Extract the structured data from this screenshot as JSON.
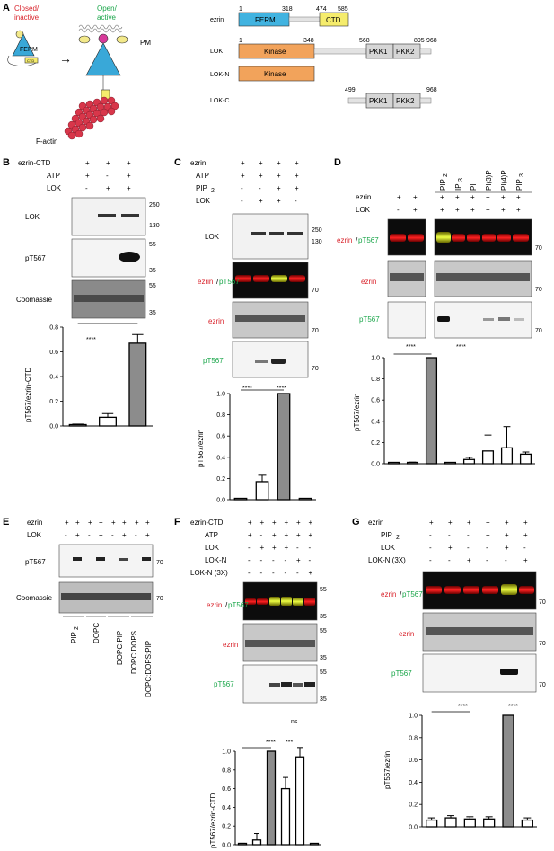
{
  "panelA": {
    "label": "A",
    "closed": "Closed/",
    "inactive": "inactive",
    "open": "Open/",
    "active": "active",
    "pm": "PM",
    "factin": "F-actin",
    "ferm_small": "FERM",
    "ctd_small": "CTD",
    "ezrin": {
      "name": "ezrin",
      "n1": "1",
      "n318": "318",
      "n474": "474",
      "n585": "585",
      "ferm": "FERM",
      "ctd": "CTD"
    },
    "lok": {
      "name": "LOK",
      "n1": "1",
      "n348": "348",
      "n568": "568",
      "n895": "895",
      "n968": "968",
      "kinase": "Kinase",
      "pkk1": "PKK1",
      "pkk2": "PKK2"
    },
    "lokn": {
      "name": "LOK-N",
      "kinase": "Kinase"
    },
    "lokc": {
      "name": "LOK-C",
      "n499": "499",
      "n968": "968",
      "pkk1": "PKK1",
      "pkk2": "PKK2"
    },
    "colors": {
      "ferm": "#41b3e0",
      "ctd": "#f5ec6c",
      "kinase": "#f2a35b",
      "pkk": "#d6d6d6",
      "linker": "#e3e3e3",
      "closed": "#d9242c",
      "open": "#1aa64a"
    }
  },
  "panelB": {
    "label": "B",
    "rows": [
      "ezrin-CTD",
      "ATP",
      "LOK"
    ],
    "signs": [
      [
        "+",
        "+",
        "+"
      ],
      [
        "+",
        "-",
        "+"
      ],
      [
        "-",
        "+",
        "+"
      ]
    ],
    "blots": [
      "LOK",
      "pT567",
      "Coomassie"
    ],
    "mw": [
      "250",
      "130",
      "55",
      "35",
      "55",
      "35"
    ],
    "sig": "****",
    "ylabel": "pT567/ezrin-CTD",
    "yticks": [
      "0.0",
      "0.2",
      "0.4",
      "0.6",
      "0.8"
    ]
  },
  "panelC": {
    "label": "C",
    "rows": [
      "ezrin",
      "ATP",
      "PIP",
      "LOK"
    ],
    "sub2": "2",
    "signs": [
      [
        "+",
        "+",
        "+",
        "+"
      ],
      [
        "+",
        "+",
        "+",
        "+"
      ],
      [
        "-",
        "-",
        "+",
        "+"
      ],
      [
        "-",
        "+",
        "+",
        "-"
      ]
    ],
    "blots": [
      "LOK",
      "ezrin",
      "/",
      "pT567",
      "ezrin",
      "pT567"
    ],
    "mw": [
      "250",
      "130",
      "70",
      "70",
      "70"
    ],
    "sig": [
      "****",
      "****"
    ],
    "ylabel": "pT567/ezrin",
    "yticks": [
      "0.0",
      "0.2",
      "0.4",
      "0.6",
      "0.8",
      "1.0"
    ]
  },
  "panelD": {
    "label": "D",
    "rows": [
      "ezrin",
      "LOK"
    ],
    "signs": [
      [
        "+",
        "+",
        "+",
        "+",
        "+",
        "+",
        "+",
        "+"
      ],
      [
        "-",
        "+",
        "+",
        "+",
        "+",
        "+",
        "+",
        "+"
      ]
    ],
    "cols": [
      "PIP",
      "IP",
      "PI",
      "PI(3)P",
      "PI(4)P",
      "PIP"
    ],
    "colsubs": [
      "2",
      "3",
      "",
      "",
      "",
      "3"
    ],
    "blots": [
      "ezrin",
      "/",
      "pT567",
      "ezrin",
      "pT567"
    ],
    "mw": [
      "70",
      "70",
      "70"
    ],
    "sig": [
      "****",
      "****"
    ],
    "ylabel": "pT567/ezrin",
    "yticks": [
      "0.0",
      "0.2",
      "0.4",
      "0.6",
      "0.8",
      "1.0"
    ]
  },
  "panelE": {
    "label": "E",
    "rows": [
      "ezrin",
      "LOK"
    ],
    "signs": [
      [
        "+",
        "+",
        "+",
        "+",
        "+",
        "+",
        "+",
        "+"
      ],
      [
        "-",
        "+",
        "-",
        "+",
        "-",
        "+",
        "-",
        "+"
      ]
    ],
    "blots": [
      "pT567",
      "Coomassie"
    ],
    "mw": [
      "70",
      "70"
    ],
    "cols": [
      "PIP",
      "DOPC",
      "DOPC:PIP",
      "DOPC:DOPS",
      "DOPC:DOPS:PIP"
    ],
    "colsubs": [
      "2",
      "",
      "2",
      "",
      "2"
    ]
  },
  "panelF": {
    "label": "F",
    "rows": [
      "ezrin-CTD",
      "ATP",
      "LOK",
      "LOK-N",
      "LOK-N (3X)"
    ],
    "signs": [
      [
        "+",
        "+",
        "+",
        "+",
        "+",
        "+"
      ],
      [
        "+",
        "-",
        "+",
        "+",
        "+",
        "+"
      ],
      [
        "-",
        "+",
        "+",
        "+",
        "-",
        "-"
      ],
      [
        "-",
        "-",
        "-",
        "-",
        "+",
        "-"
      ],
      [
        "-",
        "-",
        "-",
        "-",
        "-",
        "+"
      ]
    ],
    "blots": [
      "ezrin",
      "/",
      "pT567",
      "ezrin",
      "pT567"
    ],
    "mw": [
      "55",
      "35",
      "55",
      "35",
      "55",
      "35"
    ],
    "sig": [
      "****",
      "***",
      "ns"
    ],
    "ylabel": "pT567/ezrin-CTD",
    "yticks": [
      "0.0",
      "0.2",
      "0.4",
      "0.6",
      "0.8",
      "1.0"
    ]
  },
  "panelG": {
    "label": "G",
    "rows": [
      "ezrin",
      "PIP",
      "LOK",
      "LOK-N (3X)"
    ],
    "sub2": "2",
    "signs": [
      [
        "+",
        "+",
        "+",
        "+",
        "+",
        "+"
      ],
      [
        "-",
        "-",
        "-",
        "+",
        "+",
        "+"
      ],
      [
        "-",
        "+",
        "-",
        "-",
        "+",
        "-"
      ],
      [
        "-",
        "-",
        "+",
        "-",
        "-",
        "+"
      ]
    ],
    "blots": [
      "ezrin",
      "/",
      "pT567",
      "ezrin",
      "pT567"
    ],
    "mw": [
      "70",
      "70",
      "70"
    ],
    "sig": [
      "****",
      "****"
    ],
    "ylabel": "pT567/ezrin",
    "yticks": [
      "0.0",
      "0.2",
      "0.4",
      "0.6",
      "0.8",
      "1.0"
    ]
  },
  "chart_data": [
    {
      "type": "bar",
      "panel": "B",
      "categories": [
        "1",
        "2",
        "3"
      ],
      "values": [
        0.01,
        0.07,
        0.67
      ],
      "errors": [
        0.005,
        0.03,
        0.07
      ],
      "fill": [
        "white",
        "white",
        "gray"
      ],
      "ylabel": "pT567/ezrin-CTD",
      "ylim": [
        0,
        0.8
      ]
    },
    {
      "type": "bar",
      "panel": "C",
      "categories": [
        "1",
        "2",
        "3",
        "4"
      ],
      "values": [
        0.0,
        0.17,
        1.0,
        0.0
      ],
      "errors": [
        0,
        0.06,
        0,
        0
      ],
      "fill": [
        "white",
        "white",
        "gray",
        "white"
      ],
      "ylabel": "pT567/ezrin",
      "ylim": [
        0,
        1.0
      ]
    },
    {
      "type": "bar",
      "panel": "D",
      "categories": [
        "1",
        "2",
        "3",
        "4",
        "5",
        "6",
        "7",
        "8"
      ],
      "values": [
        0.0,
        0.01,
        1.0,
        0.0,
        0.04,
        0.12,
        0.15,
        0.09
      ],
      "errors": [
        0,
        0.005,
        0,
        0,
        0.02,
        0.15,
        0.2,
        0.02
      ],
      "fill": [
        "white",
        "white",
        "gray",
        "white",
        "white",
        "white",
        "white",
        "white"
      ],
      "ylabel": "pT567/ezrin",
      "ylim": [
        0,
        1.0
      ]
    },
    {
      "type": "bar",
      "panel": "F",
      "categories": [
        "1",
        "2",
        "3",
        "4",
        "5",
        "6"
      ],
      "values": [
        0.01,
        0.05,
        1.0,
        0.6,
        0.94,
        0.0
      ],
      "errors": [
        0.005,
        0.07,
        0,
        0.12,
        0.1,
        0
      ],
      "fill": [
        "white",
        "white",
        "gray",
        "white",
        "white",
        "white"
      ],
      "ylabel": "pT567/ezrin-CTD",
      "ylim": [
        0,
        1.0
      ]
    },
    {
      "type": "bar",
      "panel": "G",
      "categories": [
        "1",
        "2",
        "3",
        "4",
        "5",
        "6"
      ],
      "values": [
        0.06,
        0.08,
        0.07,
        0.07,
        1.0,
        0.06
      ],
      "errors": [
        0.02,
        0.02,
        0.02,
        0.02,
        0,
        0.02
      ],
      "fill": [
        "white",
        "white",
        "white",
        "white",
        "gray",
        "white"
      ],
      "ylabel": "pT567/ezrin",
      "ylim": [
        0,
        1.0
      ]
    }
  ]
}
